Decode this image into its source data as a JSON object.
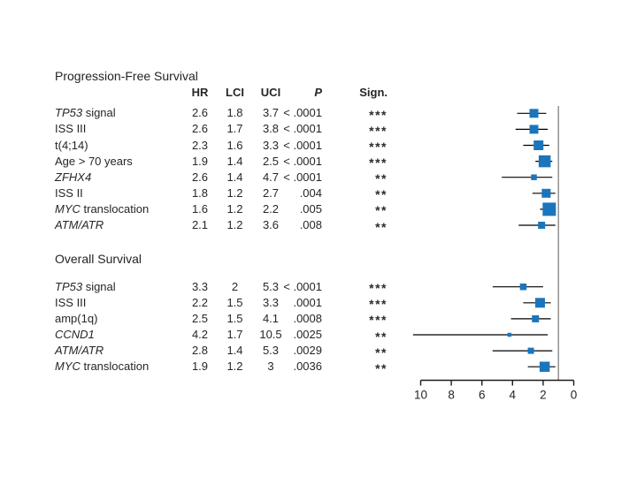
{
  "table": {
    "columns": [
      "HR",
      "LCI",
      "UCI",
      "P",
      "Sign."
    ]
  },
  "chart_data": {
    "type": "forest",
    "xlabel": "",
    "axis": {
      "ticks": [
        10,
        8,
        6,
        4,
        2,
        0
      ],
      "range": [
        0,
        10
      ],
      "reversed": true,
      "ref_line_at": 1
    },
    "colors": {
      "marker": "#1b75bc",
      "ci_line": "#000000",
      "ref_line": "#8a8a8a",
      "axis": "#1a1a1a",
      "text": "#262626"
    },
    "sections": [
      {
        "title": "Progression-Free Survival",
        "rows": [
          {
            "gene": "TP53",
            "rest": " signal",
            "hr": "2.6",
            "lci": "1.8",
            "uci": "3.7",
            "p": "< .0001",
            "sign": "***",
            "marker_size": 10
          },
          {
            "gene": "",
            "rest": "ISS III",
            "hr": "2.6",
            "lci": "1.7",
            "uci": "3.8",
            "p": "< .0001",
            "sign": "***",
            "marker_size": 10
          },
          {
            "gene": "",
            "rest": "t(4;14)",
            "hr": "2.3",
            "lci": "1.6",
            "uci": "3.3",
            "p": "< .0001",
            "sign": "***",
            "marker_size": 11
          },
          {
            "gene": "",
            "rest": "Age > 70 years",
            "hr": "1.9",
            "lci": "1.4",
            "uci": "2.5",
            "p": "< .0001",
            "sign": "***",
            "marker_size": 13.5
          },
          {
            "gene": "ZFHX4",
            "rest": "",
            "hr": "2.6",
            "lci": "1.4",
            "uci": "4.7",
            "p": "< .0001",
            "sign": "**",
            "marker_size": 6.5
          },
          {
            "gene": "",
            "rest": "ISS II",
            "hr": "1.8",
            "lci": "1.2",
            "uci": "2.7",
            "p": ".004",
            "sign": "**",
            "marker_size": 10
          },
          {
            "gene": "MYC",
            "rest": " translocation",
            "hr": "1.6",
            "lci": "1.2",
            "uci": "2.2",
            "p": ".005",
            "sign": "**",
            "marker_size": 15
          },
          {
            "gene": "ATM/ATR",
            "rest": "",
            "hr": "2.1",
            "lci": "1.2",
            "uci": "3.6",
            "p": ".008",
            "sign": "**",
            "marker_size": 8
          }
        ]
      },
      {
        "title": "Overall Survival",
        "rows": [
          {
            "gene": "TP53",
            "rest": " signal",
            "hr": "3.3",
            "lci": "2",
            "uci": "5.3",
            "p": "< .0001",
            "sign": "***",
            "marker_size": 7.5
          },
          {
            "gene": "",
            "rest": "ISS III",
            "hr": "2.2",
            "lci": "1.5",
            "uci": "3.3",
            "p": ".0001",
            "sign": "***",
            "marker_size": 11
          },
          {
            "gene": "",
            "rest": "amp(1q)",
            "hr": "2.5",
            "lci": "1.5",
            "uci": "4.1",
            "p": ".0008",
            "sign": "***",
            "marker_size": 8
          },
          {
            "gene": "CCND1",
            "rest": "",
            "hr": "4.2",
            "lci": "1.7",
            "uci": "10.5",
            "p": ".0025",
            "sign": "**",
            "marker_size": 4.5
          },
          {
            "gene": "ATM/ATR",
            "rest": "",
            "hr": "2.8",
            "lci": "1.4",
            "uci": "5.3",
            "p": ".0029",
            "sign": "**",
            "marker_size": 7
          },
          {
            "gene": "MYC",
            "rest": " translocation",
            "hr": "1.9",
            "lci": "1.2",
            "uci": "3",
            "p": ".0036",
            "sign": "**",
            "marker_size": 11.5
          }
        ]
      }
    ]
  }
}
